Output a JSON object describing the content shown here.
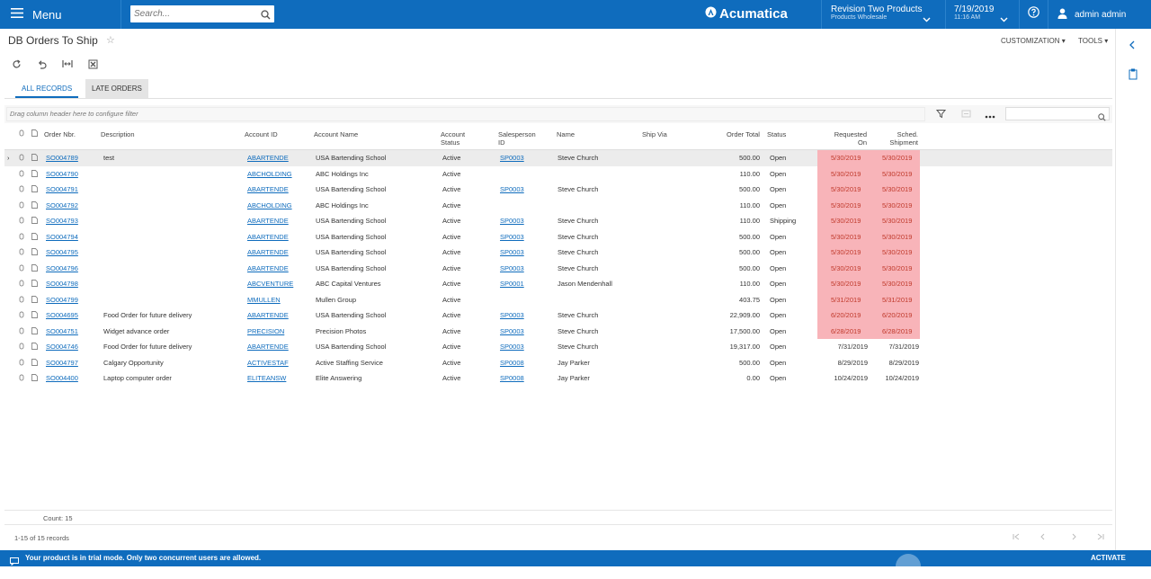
{
  "topbar": {
    "menu_label": "Menu",
    "search_placeholder": "Search...",
    "brand_name": "Acumatica",
    "company_name": "Revision Two Products",
    "company_sub": "Products Wholesale",
    "date": "7/19/2019",
    "time": "11:16 AM",
    "user": "admin admin",
    "accent_color": "#0f6cbd"
  },
  "page": {
    "title": "DB Orders To Ship",
    "customization_label": "CUSTOMIZATION",
    "tools_label": "TOOLS"
  },
  "tabs": [
    {
      "label": "ALL RECORDS"
    },
    {
      "label": "LATE ORDERS"
    }
  ],
  "filter": {
    "hint": "Drag column header here to configure filter"
  },
  "columns": {
    "order_nbr": "Order Nbr.",
    "description": "Description",
    "account_id": "Account ID",
    "account_name": "Account Name",
    "account_status_1": "Account",
    "account_status_2": "Status",
    "salesperson_1": "Salesperson",
    "salesperson_2": "ID",
    "name": "Name",
    "ship_via": "Ship Via",
    "order_total": "Order Total",
    "status": "Status",
    "requested_1": "Requested",
    "requested_2": "On",
    "sched_1": "Sched.",
    "sched_2": "Shipment"
  },
  "rows": [
    {
      "order": "SO004789",
      "desc": "test",
      "acct": "ABARTENDE",
      "acct_name": "USA Bartending School",
      "astatus": "Active",
      "sp": "SP0003",
      "name": "Steve Church",
      "total": "500.00",
      "status": "Open",
      "req": "5/30/2019",
      "sched": "5/30/2019",
      "late": true
    },
    {
      "order": "SO004790",
      "desc": "",
      "acct": "ABCHOLDING",
      "acct_name": "ABC Holdings Inc",
      "astatus": "Active",
      "sp": "",
      "name": "",
      "total": "110.00",
      "status": "Open",
      "req": "5/30/2019",
      "sched": "5/30/2019",
      "late": true
    },
    {
      "order": "SO004791",
      "desc": "",
      "acct": "ABARTENDE",
      "acct_name": "USA Bartending School",
      "astatus": "Active",
      "sp": "SP0003",
      "name": "Steve Church",
      "total": "500.00",
      "status": "Open",
      "req": "5/30/2019",
      "sched": "5/30/2019",
      "late": true
    },
    {
      "order": "SO004792",
      "desc": "",
      "acct": "ABCHOLDING",
      "acct_name": "ABC Holdings Inc",
      "astatus": "Active",
      "sp": "",
      "name": "",
      "total": "110.00",
      "status": "Open",
      "req": "5/30/2019",
      "sched": "5/30/2019",
      "late": true
    },
    {
      "order": "SO004793",
      "desc": "",
      "acct": "ABARTENDE",
      "acct_name": "USA Bartending School",
      "astatus": "Active",
      "sp": "SP0003",
      "name": "Steve Church",
      "total": "110.00",
      "status": "Shipping",
      "req": "5/30/2019",
      "sched": "5/30/2019",
      "late": true
    },
    {
      "order": "SO004794",
      "desc": "",
      "acct": "ABARTENDE",
      "acct_name": "USA Bartending School",
      "astatus": "Active",
      "sp": "SP0003",
      "name": "Steve Church",
      "total": "500.00",
      "status": "Open",
      "req": "5/30/2019",
      "sched": "5/30/2019",
      "late": true
    },
    {
      "order": "SO004795",
      "desc": "",
      "acct": "ABARTENDE",
      "acct_name": "USA Bartending School",
      "astatus": "Active",
      "sp": "SP0003",
      "name": "Steve Church",
      "total": "500.00",
      "status": "Open",
      "req": "5/30/2019",
      "sched": "5/30/2019",
      "late": true
    },
    {
      "order": "SO004796",
      "desc": "",
      "acct": "ABARTENDE",
      "acct_name": "USA Bartending School",
      "astatus": "Active",
      "sp": "SP0003",
      "name": "Steve Church",
      "total": "500.00",
      "status": "Open",
      "req": "5/30/2019",
      "sched": "5/30/2019",
      "late": true
    },
    {
      "order": "SO004798",
      "desc": "",
      "acct": "ABCVENTURE",
      "acct_name": "ABC Capital Ventures",
      "astatus": "Active",
      "sp": "SP0001",
      "name": "Jason Mendenhall",
      "total": "110.00",
      "status": "Open",
      "req": "5/30/2019",
      "sched": "5/30/2019",
      "late": true
    },
    {
      "order": "SO004799",
      "desc": "",
      "acct": "MMULLEN",
      "acct_name": "Mullen Group",
      "astatus": "Active",
      "sp": "",
      "name": "",
      "total": "403.75",
      "status": "Open",
      "req": "5/31/2019",
      "sched": "5/31/2019",
      "late": true
    },
    {
      "order": "SO004695",
      "desc": "Food Order for future delivery",
      "acct": "ABARTENDE",
      "acct_name": "USA Bartending School",
      "astatus": "Active",
      "sp": "SP0003",
      "name": "Steve Church",
      "total": "22,909.00",
      "status": "Open",
      "req": "6/20/2019",
      "sched": "6/20/2019",
      "late": true
    },
    {
      "order": "SO004751",
      "desc": "Widget advance order",
      "acct": "PRECISION",
      "acct_name": "Precision Photos",
      "astatus": "Active",
      "sp": "SP0003",
      "name": "Steve Church",
      "total": "17,500.00",
      "status": "Open",
      "req": "6/28/2019",
      "sched": "6/28/2019",
      "late": true
    },
    {
      "order": "SO004746",
      "desc": "Food Order for future delivery",
      "acct": "ABARTENDE",
      "acct_name": "USA Bartending School",
      "astatus": "Active",
      "sp": "SP0003",
      "name": "Steve Church",
      "total": "19,317.00",
      "status": "Open",
      "req": "7/31/2019",
      "sched": "7/31/2019",
      "late": false
    },
    {
      "order": "SO004797",
      "desc": "Calgary Opportunity",
      "acct": "ACTIVESTAF",
      "acct_name": "Active Staffing Service",
      "astatus": "Active",
      "sp": "SP0008",
      "name": "Jay Parker",
      "total": "500.00",
      "status": "Open",
      "req": "8/29/2019",
      "sched": "8/29/2019",
      "late": false
    },
    {
      "order": "SO004400",
      "desc": "Laptop computer order",
      "acct": "ELITEANSW",
      "acct_name": "Elite Answering",
      "astatus": "Active",
      "sp": "SP0008",
      "name": "Jay Parker",
      "total": "0.00",
      "status": "Open",
      "req": "10/24/2019",
      "sched": "10/24/2019",
      "late": false
    }
  ],
  "footer_grid": {
    "count": "Count: 15",
    "records": "1-15 of 15 records"
  },
  "footer": {
    "message": "Your product is in trial mode. Only two concurrent users are allowed.",
    "activate": "ACTIVATE"
  }
}
